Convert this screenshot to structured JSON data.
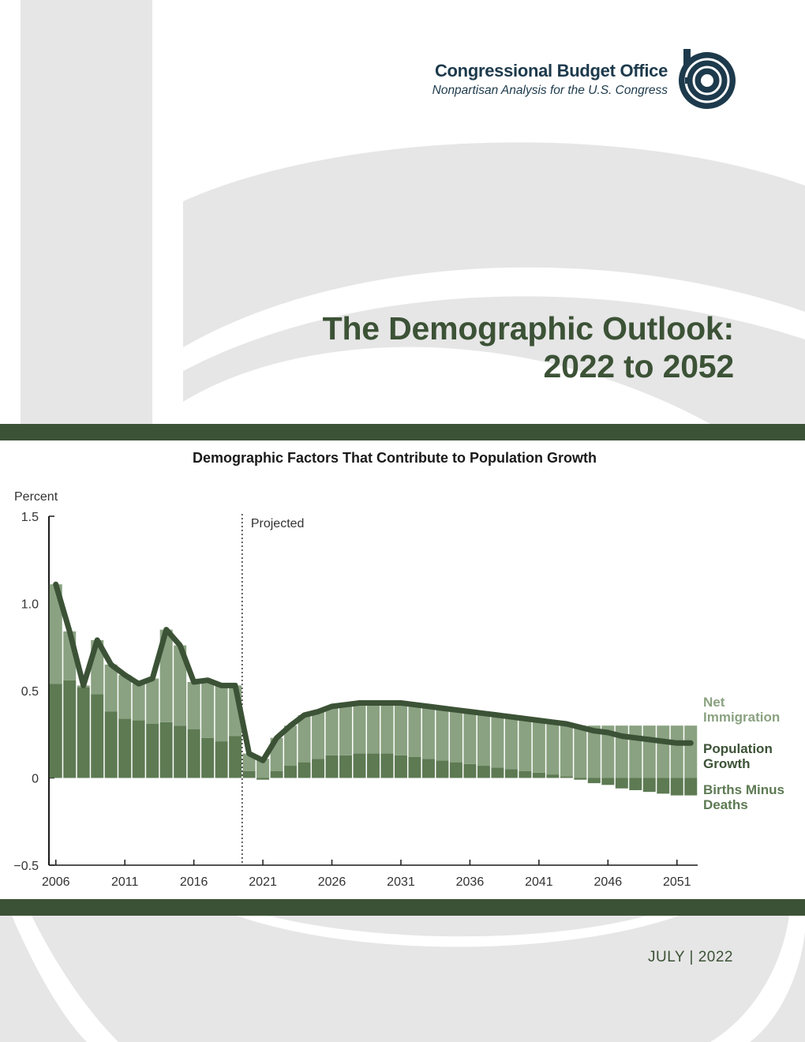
{
  "header": {
    "org_name": "Congressional Budget Office",
    "org_tagline": "Nonpartisan Analysis for the U.S. Congress",
    "logo_icon": "cbo-logo"
  },
  "report": {
    "title_line1": "The Demographic Outlook:",
    "title_line2": "2022 to 2052",
    "date": "JULY | 2022"
  },
  "colors": {
    "accent": "#3c5236",
    "net_immigration": "#8aa281",
    "births_minus_deaths": "#5d7a53",
    "population_growth": "#3c5236",
    "background_pattern": "#e6e6e6"
  },
  "chart_data": {
    "type": "bar",
    "title": "Demographic Factors That Contribute to Population Growth",
    "ylabel": "Percent",
    "ylim": [
      -0.5,
      1.5
    ],
    "yticks": [
      1.5,
      1.0,
      0.5,
      0,
      -0.5
    ],
    "ytick_labels": [
      "1.5",
      "1.0",
      "0.5",
      "0",
      "−0.5"
    ],
    "xticks": [
      "2006",
      "2011",
      "2016",
      "2021",
      "2026",
      "2031",
      "2036",
      "2041",
      "2046",
      "2051"
    ],
    "projected_label": "Projected",
    "projected_start": 2019.5,
    "stacked": true,
    "x": [
      2006,
      2007,
      2008,
      2009,
      2010,
      2011,
      2012,
      2013,
      2014,
      2015,
      2016,
      2017,
      2018,
      2019,
      2020,
      2021,
      2022,
      2023,
      2024,
      2025,
      2026,
      2027,
      2028,
      2029,
      2030,
      2031,
      2032,
      2033,
      2034,
      2035,
      2036,
      2037,
      2038,
      2039,
      2040,
      2041,
      2042,
      2043,
      2044,
      2045,
      2046,
      2047,
      2048,
      2049,
      2050,
      2051,
      2052
    ],
    "series": [
      {
        "name": "Births Minus Deaths",
        "values": [
          0.54,
          0.56,
          0.52,
          0.48,
          0.38,
          0.34,
          0.33,
          0.31,
          0.32,
          0.3,
          0.28,
          0.23,
          0.21,
          0.24,
          0.04,
          -0.01,
          0.04,
          0.07,
          0.09,
          0.11,
          0.13,
          0.13,
          0.14,
          0.14,
          0.14,
          0.13,
          0.12,
          0.11,
          0.1,
          0.09,
          0.08,
          0.07,
          0.06,
          0.05,
          0.04,
          0.03,
          0.02,
          0.01,
          -0.01,
          -0.03,
          -0.04,
          -0.06,
          -0.07,
          -0.08,
          -0.09,
          -0.1,
          -0.1
        ]
      },
      {
        "name": "Net Immigration",
        "values": [
          0.57,
          0.28,
          0.01,
          0.31,
          0.27,
          0.25,
          0.21,
          0.26,
          0.53,
          0.46,
          0.27,
          0.33,
          0.32,
          0.29,
          0.1,
          0.11,
          0.19,
          0.23,
          0.27,
          0.27,
          0.28,
          0.29,
          0.29,
          0.29,
          0.29,
          0.3,
          0.3,
          0.3,
          0.3,
          0.3,
          0.3,
          0.3,
          0.3,
          0.3,
          0.3,
          0.3,
          0.3,
          0.3,
          0.3,
          0.3,
          0.3,
          0.3,
          0.3,
          0.3,
          0.3,
          0.3,
          0.3
        ]
      }
    ],
    "line": {
      "name": "Population Growth",
      "values": [
        1.11,
        0.84,
        0.53,
        0.79,
        0.65,
        0.59,
        0.54,
        0.57,
        0.85,
        0.76,
        0.55,
        0.56,
        0.53,
        0.53,
        0.14,
        0.1,
        0.23,
        0.3,
        0.36,
        0.38,
        0.41,
        0.42,
        0.43,
        0.43,
        0.43,
        0.43,
        0.42,
        0.41,
        0.4,
        0.39,
        0.38,
        0.37,
        0.36,
        0.35,
        0.34,
        0.33,
        0.32,
        0.31,
        0.29,
        0.27,
        0.26,
        0.24,
        0.23,
        0.22,
        0.21,
        0.2,
        0.2
      ]
    },
    "legend_labels": [
      {
        "key": "net_immigration",
        "text": [
          "Net",
          "Immigration"
        ]
      },
      {
        "key": "population_growth",
        "text": [
          "Population",
          "Growth"
        ]
      },
      {
        "key": "births_minus_deaths",
        "text": [
          "Births Minus",
          "Deaths"
        ]
      }
    ],
    "legend_position": "right",
    "grid": false
  }
}
